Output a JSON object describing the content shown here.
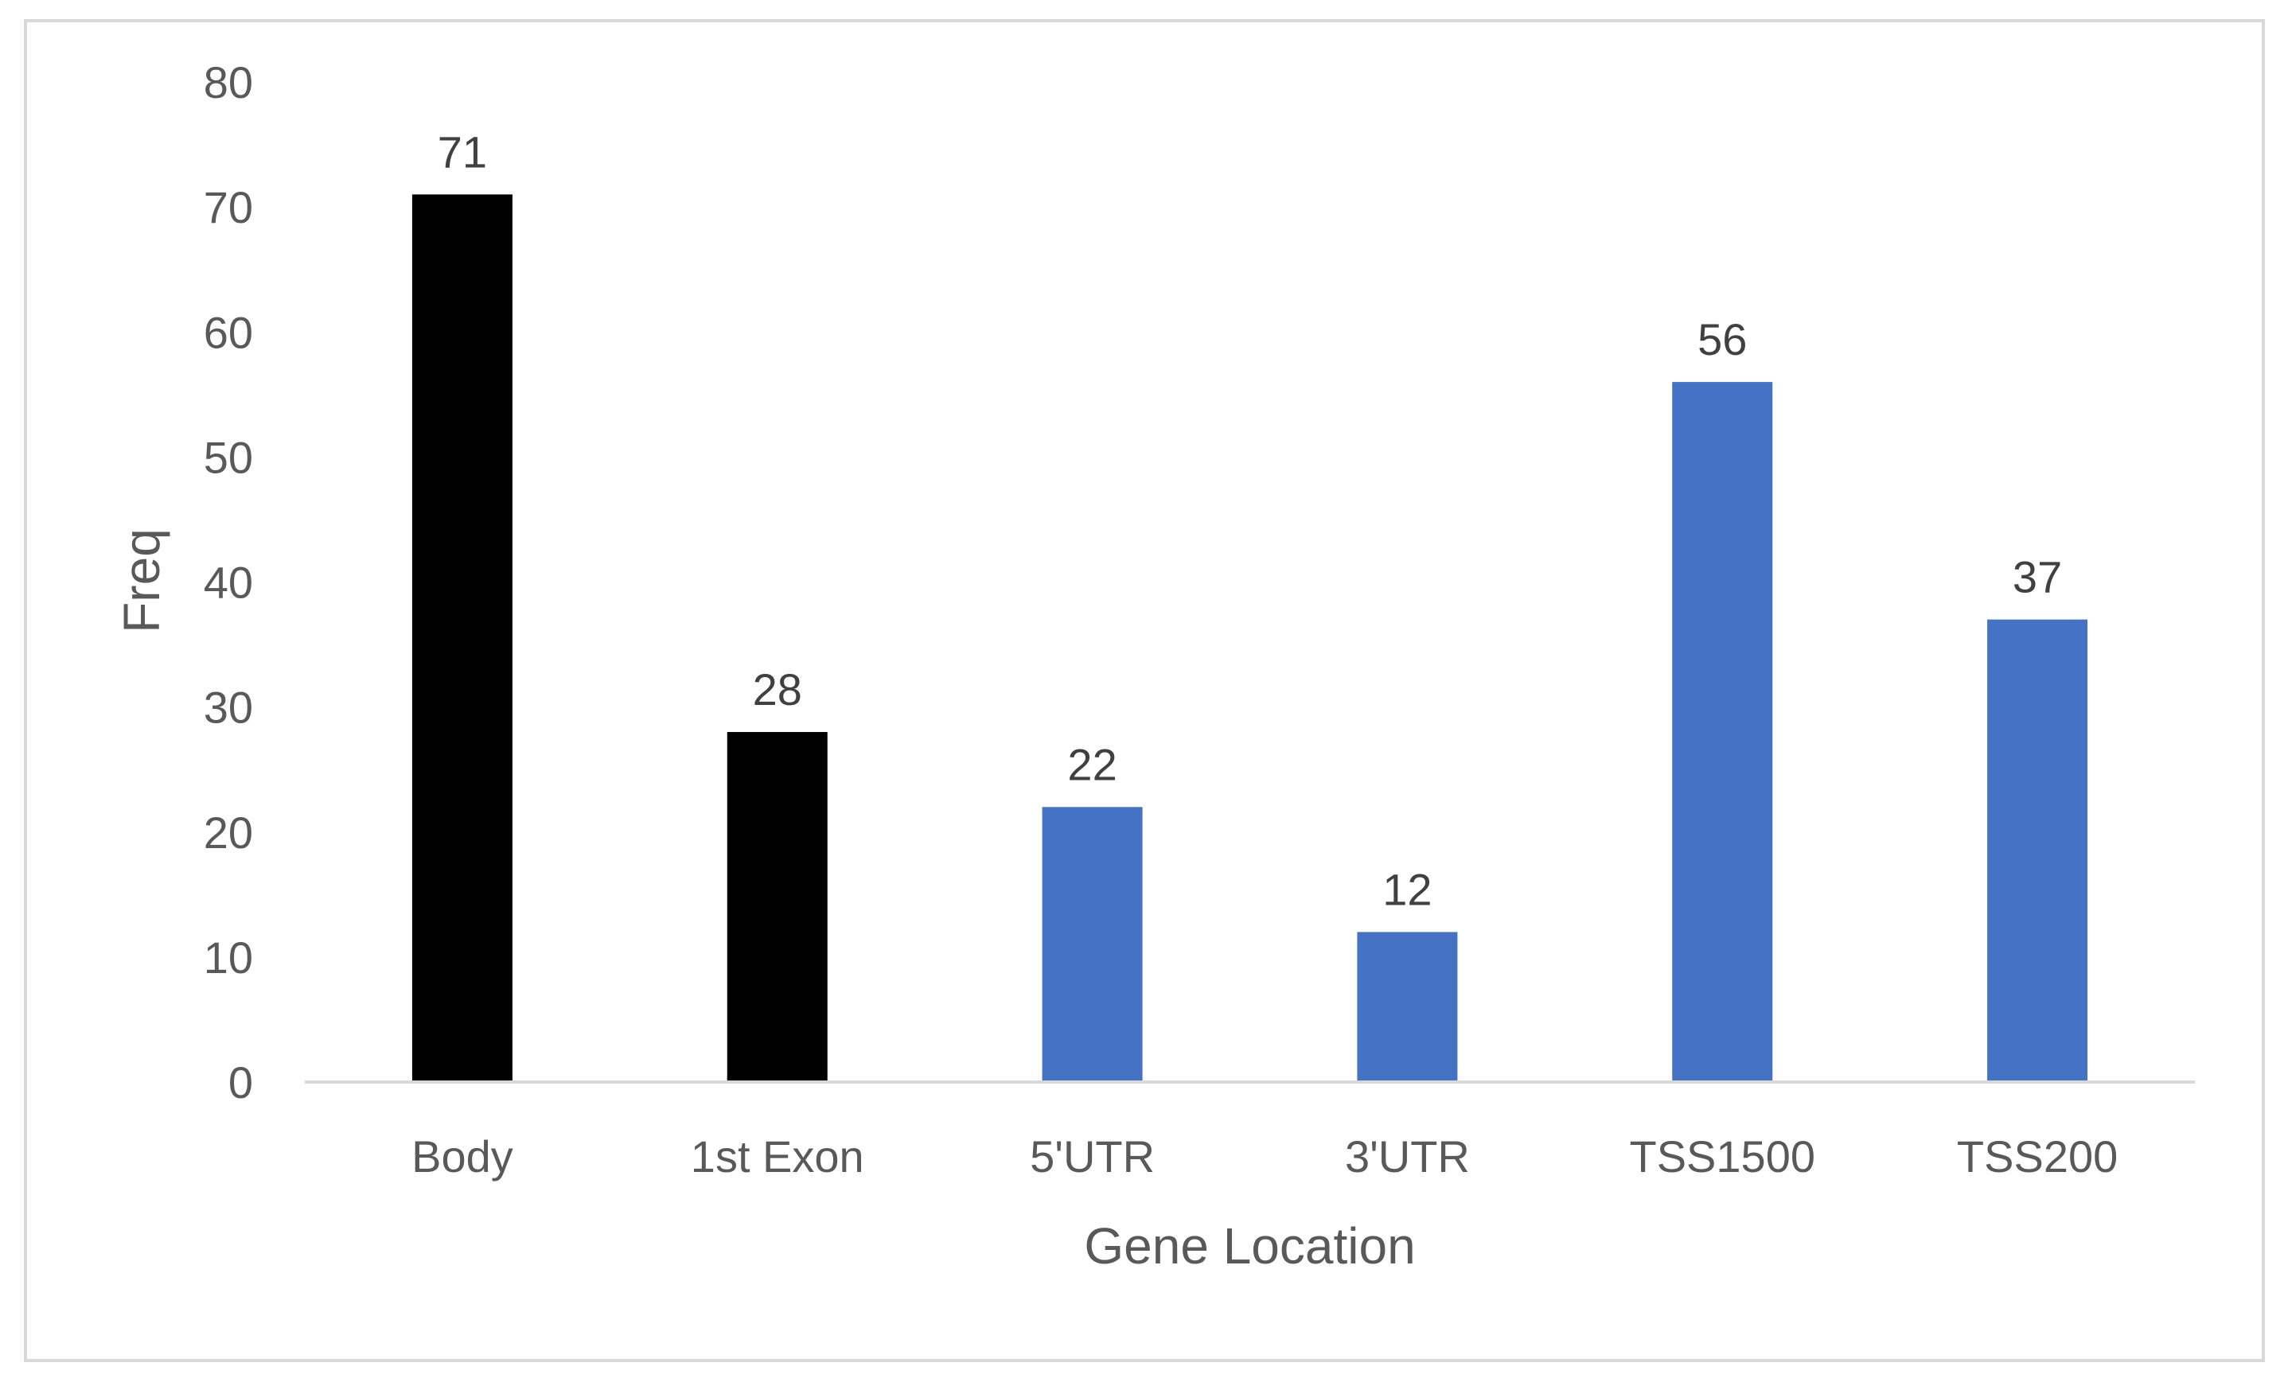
{
  "chart_data": {
    "type": "bar",
    "title": "",
    "xlabel": "Gene Location",
    "ylabel": "Freq",
    "categories": [
      "Body",
      "1st Exon",
      "5'UTR",
      "3'UTR",
      "TSS1500",
      "TSS200"
    ],
    "values": [
      71,
      28,
      22,
      12,
      56,
      37
    ],
    "bar_colors": [
      "#000000",
      "#000000",
      "#4472C4",
      "#4472C4",
      "#4472C4",
      "#4472C4"
    ],
    "data_labels": [
      "71",
      "28",
      "22",
      "12",
      "56",
      "37"
    ],
    "ylim": [
      0,
      80
    ],
    "yticks": [
      "0",
      "10",
      "20",
      "30",
      "40",
      "50",
      "60",
      "70",
      "80"
    ],
    "grid": false,
    "legend": "none",
    "axis_color": "#d9d9d9"
  }
}
